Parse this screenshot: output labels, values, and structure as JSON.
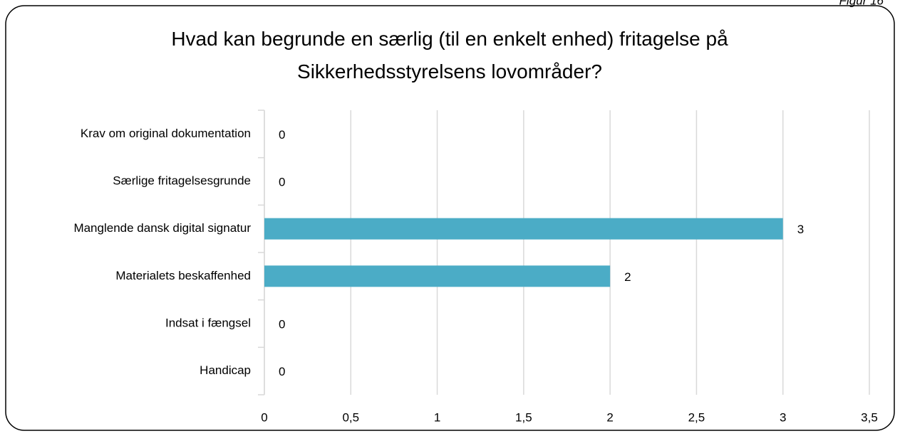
{
  "chart_data": {
    "type": "bar",
    "orientation": "horizontal",
    "title": "Hvad kan begrunde en særlig (til en enkelt enhed) fritagelse på Sikkerhedsstyrelsens lovområder?",
    "figure_label": "Figur 16",
    "categories": [
      "Krav om original dokumentation",
      "Særlige fritagelsesgrunde",
      "Manglende dansk digital signatur",
      "Materialets beskaffenhed",
      "Indsat i fængsel",
      "Handicap"
    ],
    "values": [
      0,
      0,
      3,
      2,
      0,
      0
    ],
    "color": "#4bacc6",
    "xlim": [
      0,
      3.5
    ],
    "xticks": [
      0,
      {
        "value": 0.5,
        "label": "0,5"
      },
      1,
      {
        "value": 1.5,
        "label": "1,5"
      },
      2,
      {
        "value": 2.5,
        "label": "2,5"
      },
      3,
      {
        "value": 3.5,
        "label": "3,5"
      }
    ],
    "grid": true
  }
}
